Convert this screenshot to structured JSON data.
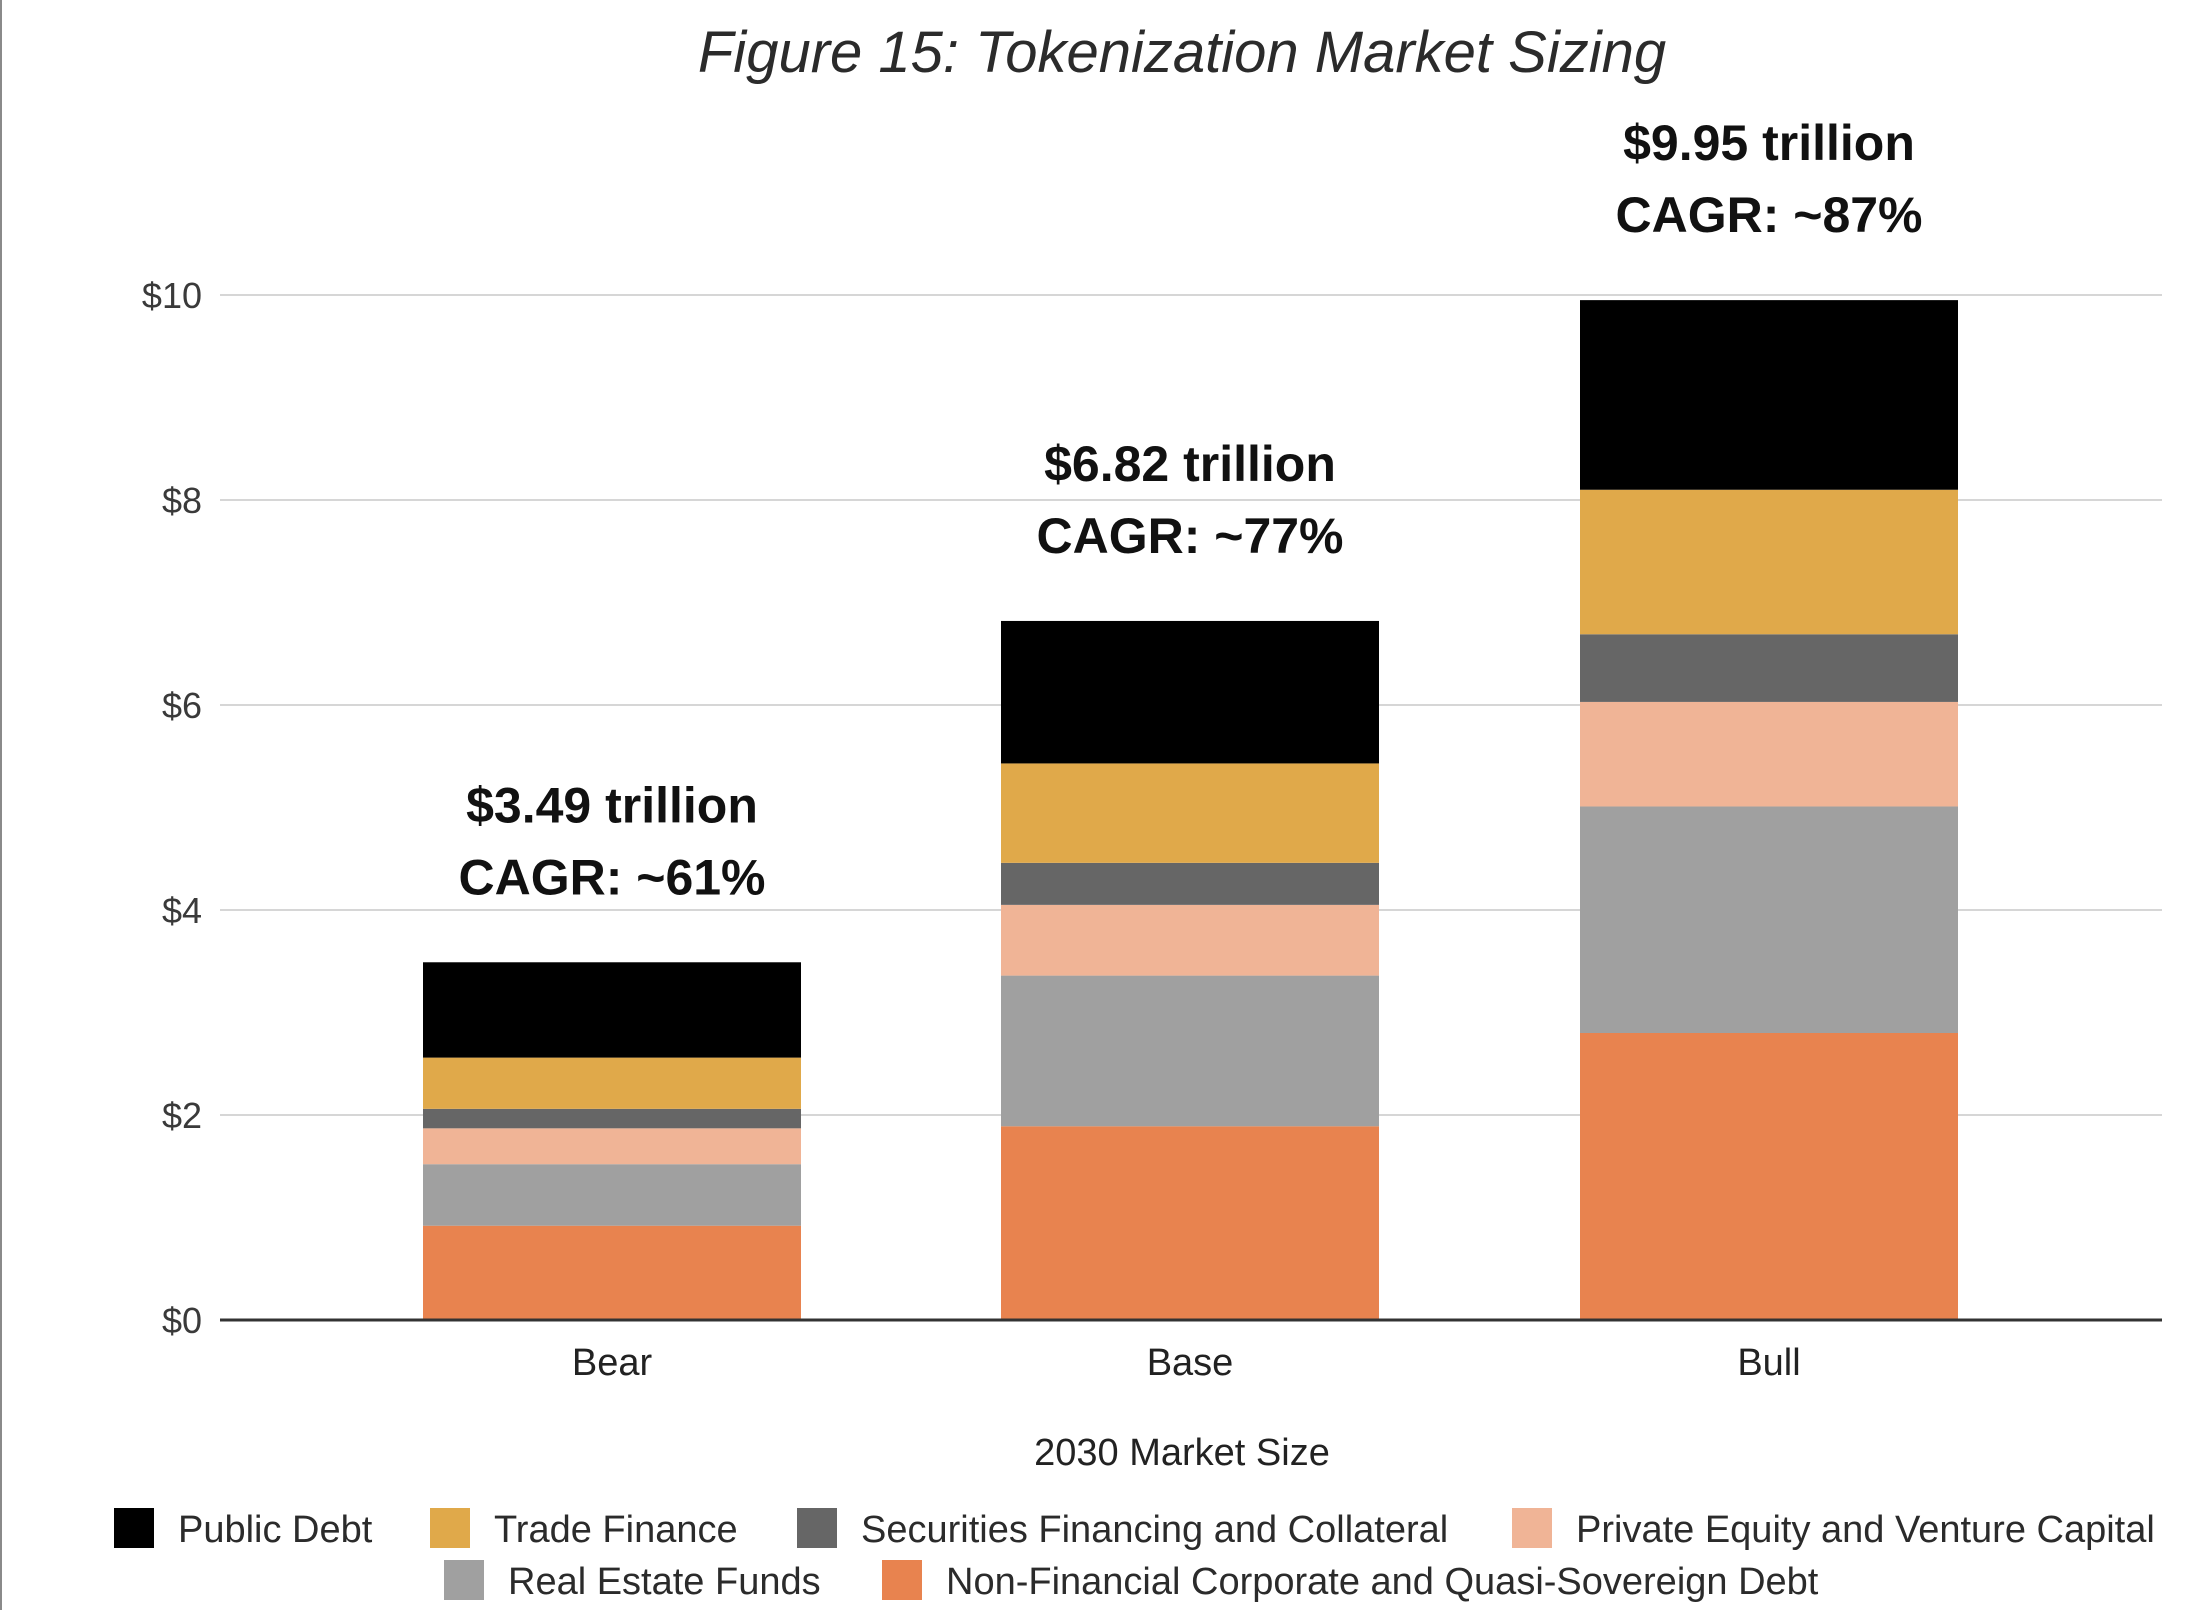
{
  "chart_data": {
    "type": "bar",
    "stacked": true,
    "title": "Figure 15: Tokenization Market Sizing",
    "xlabel": "2030 Market Size",
    "ylabel": "",
    "ylim": [
      0,
      10
    ],
    "yticks": [
      0,
      2,
      4,
      6,
      8,
      10
    ],
    "ytick_labels": [
      "$0",
      "$2",
      "$4",
      "$6",
      "$8",
      "$10"
    ],
    "grid": true,
    "categories": [
      "Bear",
      "Base",
      "Bull"
    ],
    "series": [
      {
        "name": "Non-Financial Corporate and Quasi-Sovereign Debt",
        "color": "#E8834F",
        "values": [
          0.92,
          1.89,
          2.8
        ]
      },
      {
        "name": "Real Estate Funds",
        "color": "#A0A0A0",
        "values": [
          0.6,
          1.47,
          2.21
        ]
      },
      {
        "name": "Private Equity and Venture Capital",
        "color": "#F0B496",
        "values": [
          0.35,
          0.69,
          1.02
        ]
      },
      {
        "name": "Securities Financing and Collateral",
        "color": "#666666",
        "values": [
          0.19,
          0.41,
          0.66
        ]
      },
      {
        "name": "Trade Finance",
        "color": "#E0A94A",
        "values": [
          0.5,
          0.97,
          1.41
        ]
      },
      {
        "name": "Public Debt",
        "color": "#000000",
        "values": [
          0.93,
          1.39,
          1.85
        ]
      }
    ],
    "totals": [
      3.49,
      6.82,
      9.95
    ],
    "annotations": [
      {
        "line1": "$3.49 trillion",
        "line2": "CAGR: ~61%"
      },
      {
        "line1": "$6.82  trillion",
        "line2": "CAGR: ~77%"
      },
      {
        "line1": "$9.95  trillion",
        "line2": "CAGR: ~87%"
      }
    ],
    "legend": {
      "placement": "bottom",
      "order": [
        "Public Debt",
        "Trade Finance",
        "Securities Financing and Collateral",
        "Private Equity and Venture Capital",
        "Real Estate Funds",
        "Non-Financial Corporate and Quasi-Sovereign Debt"
      ]
    }
  }
}
